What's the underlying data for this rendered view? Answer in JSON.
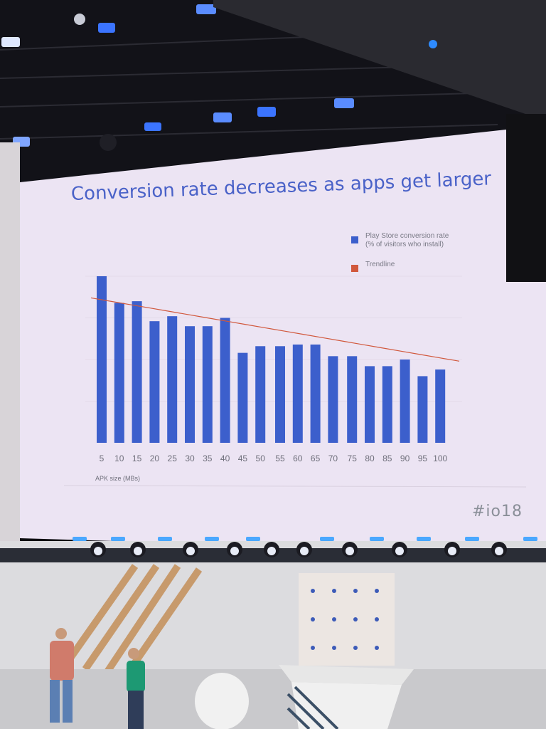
{
  "slide": {
    "title": "Conversion rate decreases as apps get larger",
    "hashtag": "#io18"
  },
  "chart_data": {
    "type": "bar",
    "title": "Conversion rate decreases as apps get larger",
    "xlabel": "APK size (MBs)",
    "ylabel": "",
    "categories": [
      "5",
      "10",
      "15",
      "20",
      "25",
      "30",
      "35",
      "40",
      "45",
      "50",
      "55",
      "60",
      "65",
      "70",
      "75",
      "80",
      "85",
      "90",
      "95",
      "100"
    ],
    "series": [
      {
        "name": "Play Store conversion rate (% of visitors who install)",
        "values": [
          100,
          84,
          85,
          73,
          76,
          70,
          70,
          75,
          54,
          58,
          58,
          59,
          59,
          52,
          52,
          46,
          46,
          50,
          40,
          44
        ]
      },
      {
        "name": "Trendline",
        "type": "line",
        "values": [
          87,
          85,
          83,
          81,
          79,
          77,
          75,
          73,
          71,
          69,
          67,
          65,
          63,
          61,
          59,
          57,
          55,
          53,
          51,
          49
        ]
      }
    ],
    "ylim": [
      0,
      100
    ],
    "grid": true,
    "legend_position": "top-right",
    "colors": {
      "bars": "#3c5fcc",
      "trendline": "#d1583c",
      "slide_bg": "#ece4f3"
    }
  }
}
